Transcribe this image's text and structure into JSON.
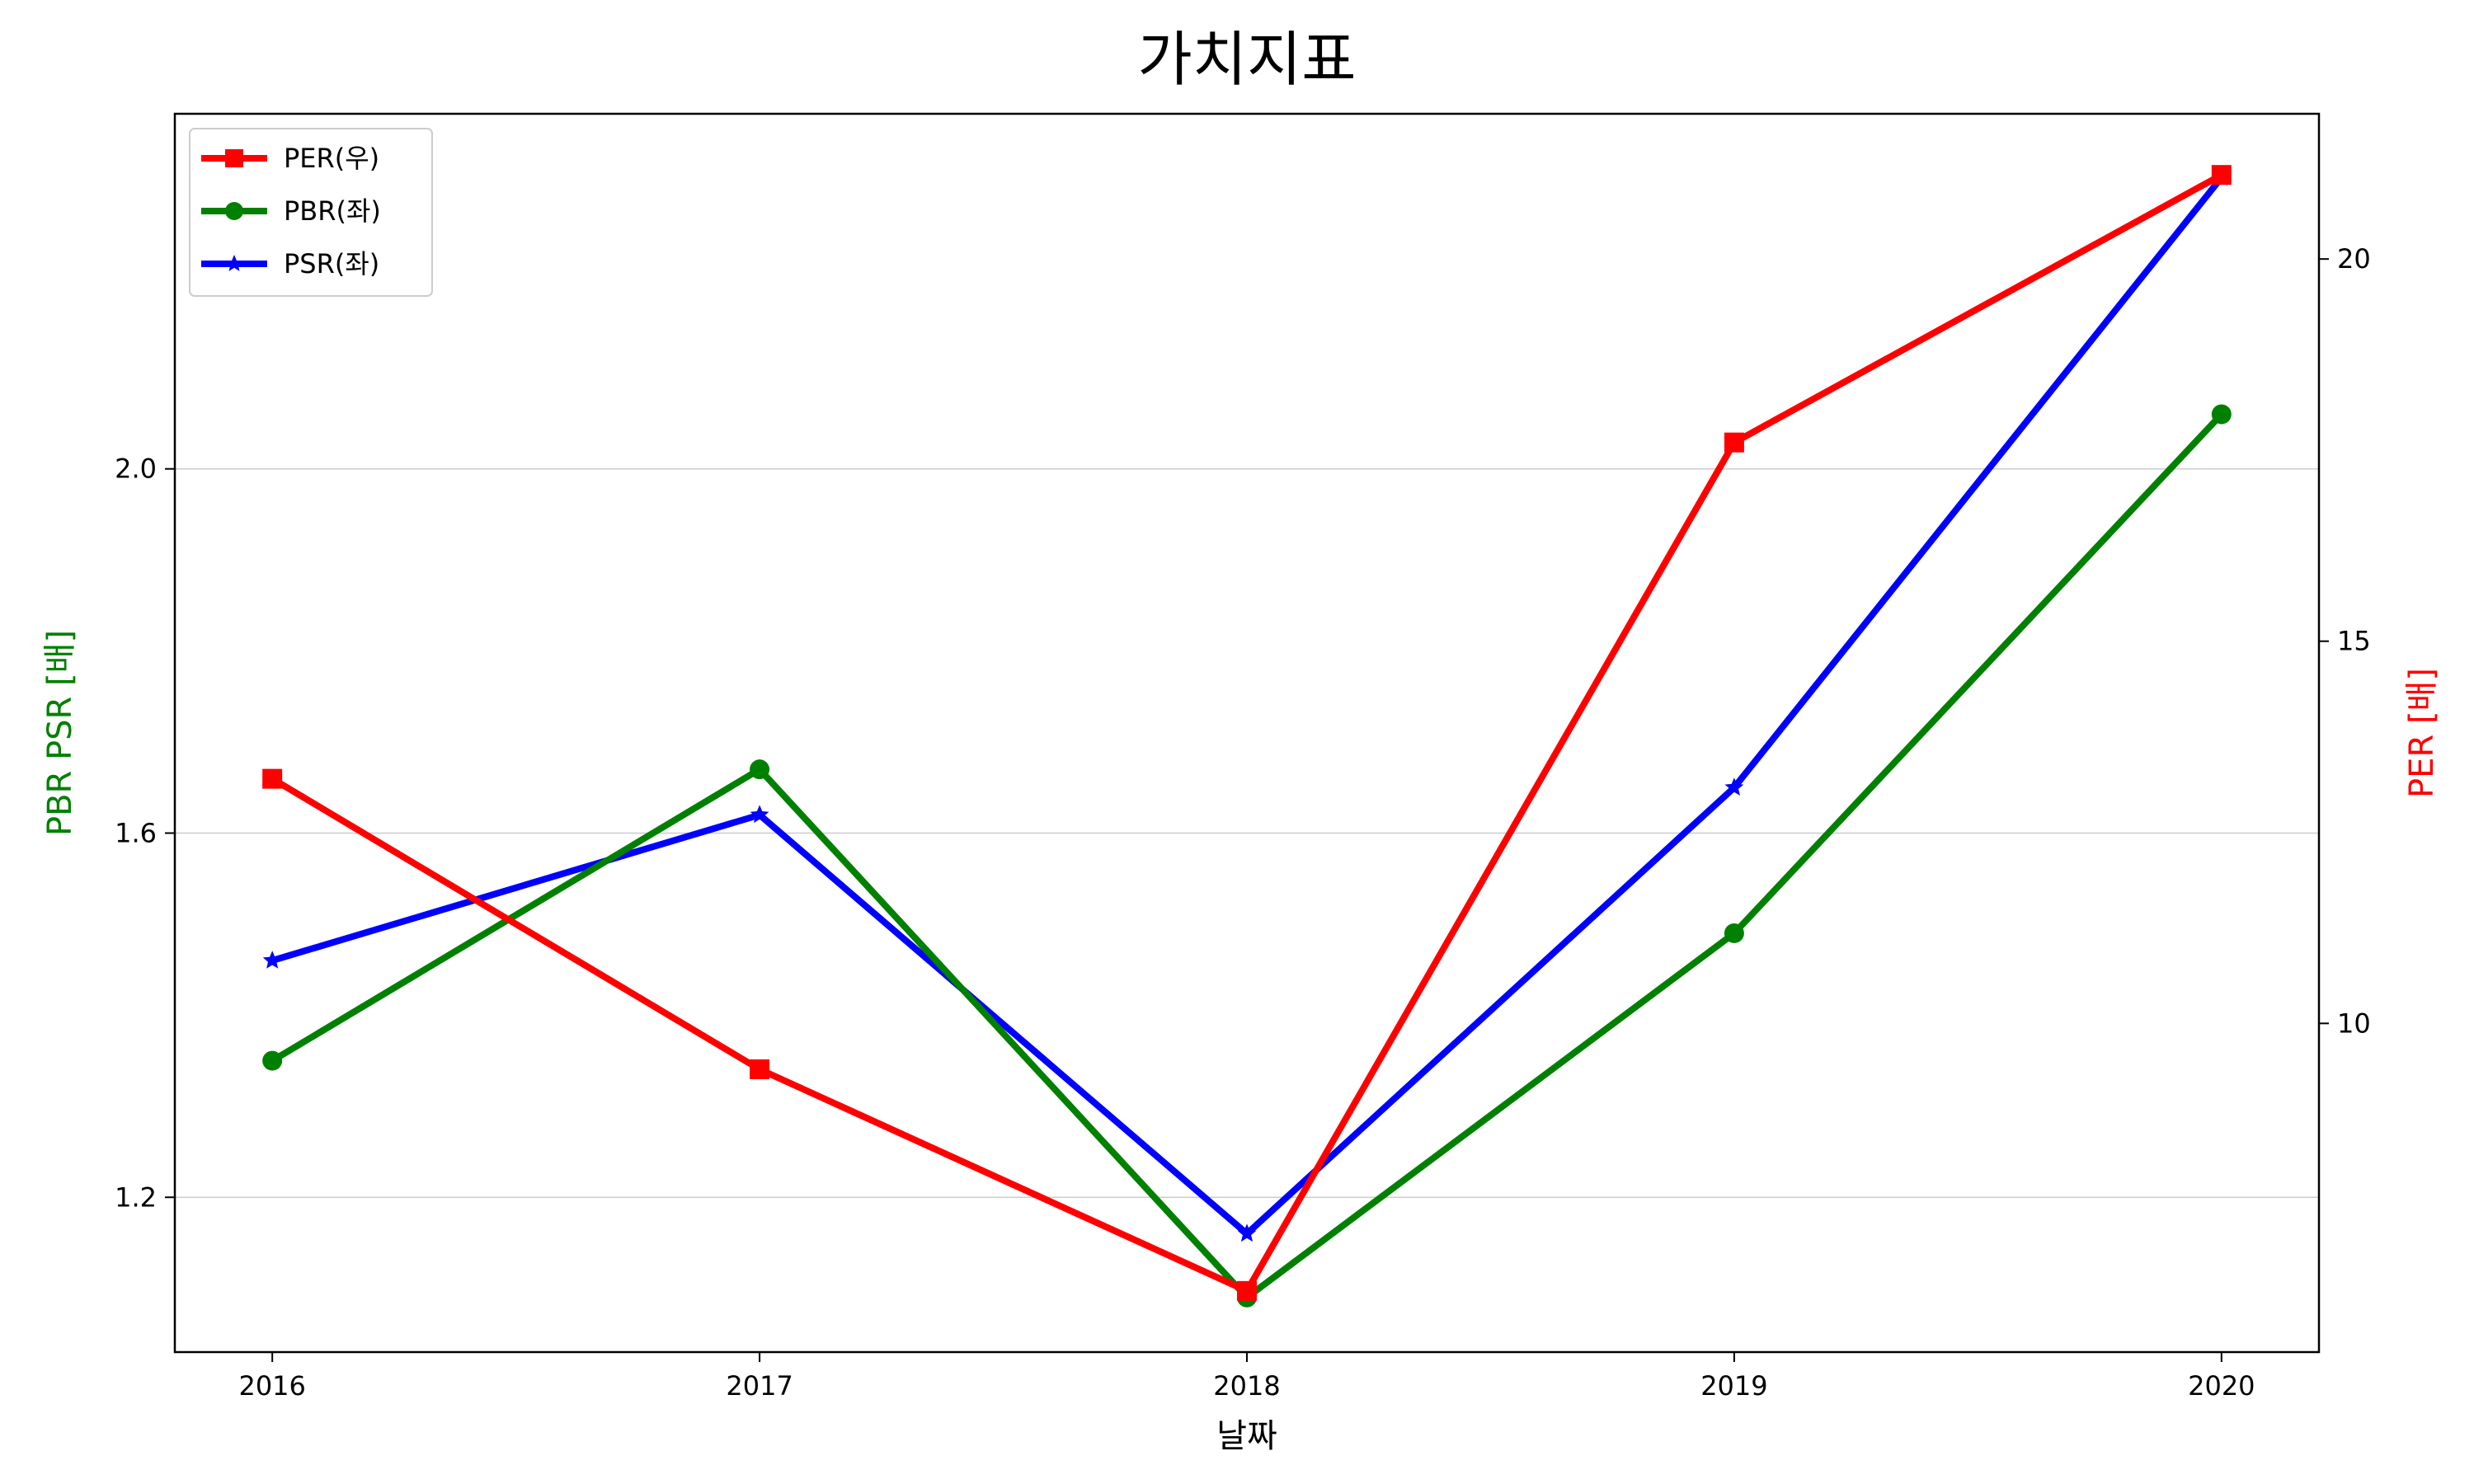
{
  "chart_data": {
    "type": "line",
    "title": "가치지표",
    "xlabel": "날짜",
    "ylabel_left": "PBR PSR [배]",
    "ylabel_right": "PER [배]",
    "x": [
      "2016",
      "2017",
      "2018",
      "2019",
      "2020"
    ],
    "xlim": [
      2015.8,
      2020.2
    ],
    "ylim_left": [
      1.03,
      2.39
    ],
    "ylim_right": [
      5.7,
      21.9
    ],
    "yticks_left": [
      "1.2",
      "1.6",
      "2.0"
    ],
    "yticks_right": [
      "10",
      "15",
      "20"
    ],
    "grid": "horizontal",
    "legend_position": "upper-left",
    "series": [
      {
        "name": "PER(우)",
        "axis": "right",
        "color": "#ff0000",
        "marker": "square",
        "values": [
          13.2,
          9.4,
          6.5,
          17.6,
          21.1
        ]
      },
      {
        "name": "PBR(좌)",
        "axis": "left",
        "color": "#008000",
        "marker": "circle",
        "values": [
          1.35,
          1.67,
          1.09,
          1.49,
          2.06
        ]
      },
      {
        "name": "PSR(좌)",
        "axis": "left",
        "color": "#0000ff",
        "marker": "star",
        "values": [
          1.46,
          1.62,
          1.16,
          1.65,
          2.32
        ]
      }
    ]
  }
}
